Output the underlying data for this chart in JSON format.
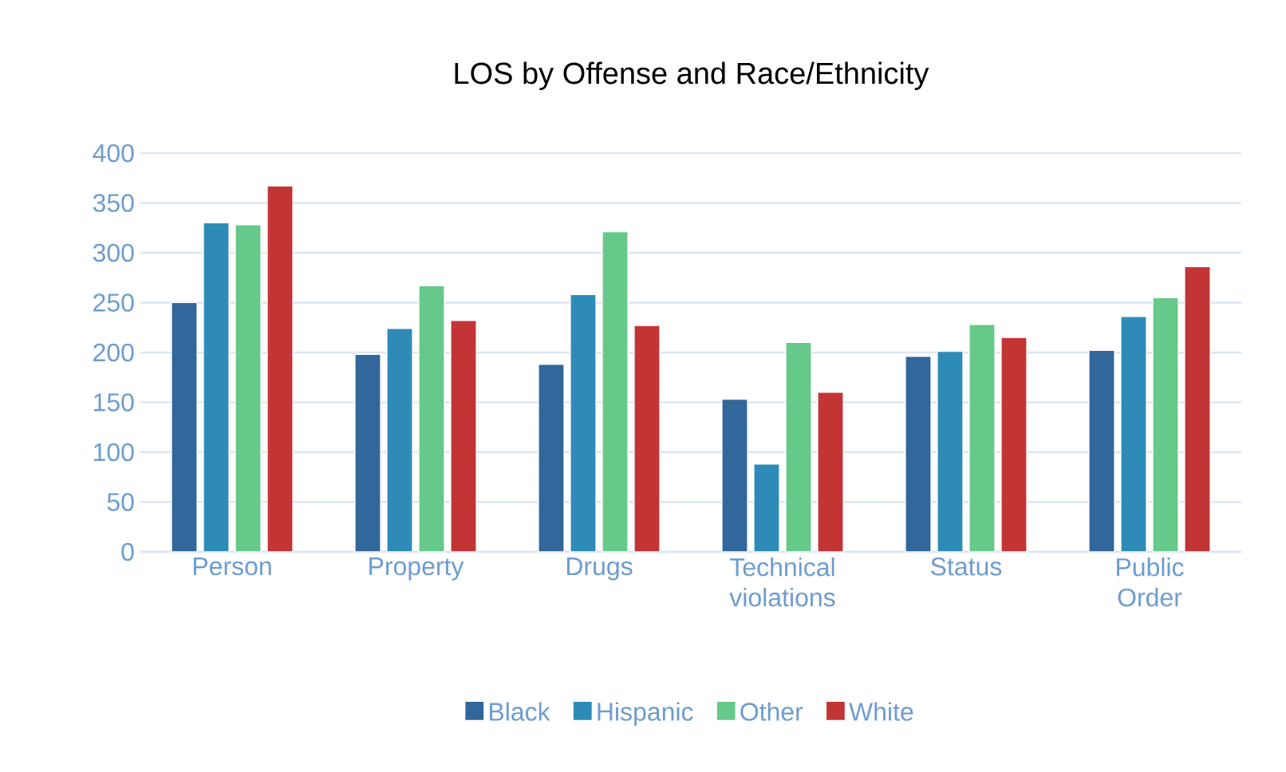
{
  "chart_data": {
    "type": "bar",
    "title": "LOS by Offense and Race/Ethnicity",
    "categories": [
      "Person",
      "Property",
      "Drugs",
      "Technical violations",
      "Status",
      "Public Order"
    ],
    "series": [
      {
        "name": "Black",
        "color": "#31679a",
        "values": [
          250,
          198,
          188,
          153,
          196,
          202
        ]
      },
      {
        "name": "Hispanic",
        "color": "#2e8bb8",
        "values": [
          330,
          224,
          258,
          88,
          201,
          236
        ]
      },
      {
        "name": "Other",
        "color": "#66c98a",
        "values": [
          328,
          267,
          321,
          210,
          228,
          255
        ]
      },
      {
        "name": "White",
        "color": "#c33535",
        "values": [
          367,
          232,
          227,
          160,
          215,
          286
        ]
      }
    ],
    "ylim": [
      0,
      400
    ],
    "yticks": [
      0,
      50,
      100,
      150,
      200,
      250,
      300,
      350,
      400
    ],
    "grid": "y",
    "legend": "bottom"
  }
}
